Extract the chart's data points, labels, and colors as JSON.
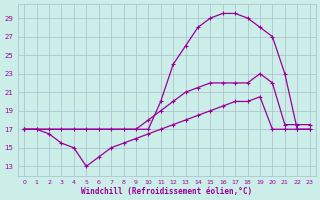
{
  "xlabel": "Windchill (Refroidissement éolien,°C)",
  "bg_color": "#cceee8",
  "grid_color": "#aabbcc",
  "line_color": "#990099",
  "xlim": [
    -0.5,
    23.5
  ],
  "ylim": [
    12,
    30.5
  ],
  "xticks": [
    0,
    1,
    2,
    3,
    4,
    5,
    6,
    7,
    8,
    9,
    10,
    11,
    12,
    13,
    14,
    15,
    16,
    17,
    18,
    19,
    20,
    21,
    22,
    23
  ],
  "yticks": [
    13,
    15,
    17,
    19,
    21,
    23,
    25,
    27,
    29
  ],
  "line_upper_x": [
    0,
    10,
    11,
    12,
    13,
    14,
    15,
    16,
    17,
    18,
    19,
    20,
    21,
    22,
    23
  ],
  "line_upper_y": [
    17,
    17,
    20,
    24,
    26,
    28,
    29,
    29.5,
    29.5,
    29,
    28,
    27,
    23,
    17,
    17
  ],
  "line_mid_x": [
    0,
    1,
    2,
    3,
    4,
    5,
    6,
    7,
    8,
    9,
    10,
    11,
    12,
    13,
    14,
    15,
    16,
    17,
    18,
    19,
    20,
    21,
    22,
    23
  ],
  "line_mid_y": [
    17,
    17,
    17,
    17,
    17,
    17,
    17,
    17,
    17,
    17,
    18,
    19,
    20,
    21,
    21.5,
    22,
    22,
    22,
    22,
    23,
    22,
    17.5,
    17.5,
    17.5
  ],
  "line_lower_x": [
    0,
    1,
    2,
    3,
    4,
    5,
    6,
    7,
    8,
    9,
    10,
    11,
    12,
    13,
    14,
    15,
    16,
    17,
    18,
    19,
    20,
    21,
    22,
    23
  ],
  "line_lower_y": [
    17,
    17,
    16.5,
    15.5,
    15,
    13,
    14,
    15,
    15.5,
    16,
    16.5,
    17,
    17.5,
    18,
    18.5,
    19,
    19.5,
    20,
    20,
    20.5,
    17,
    17,
    17,
    17
  ]
}
